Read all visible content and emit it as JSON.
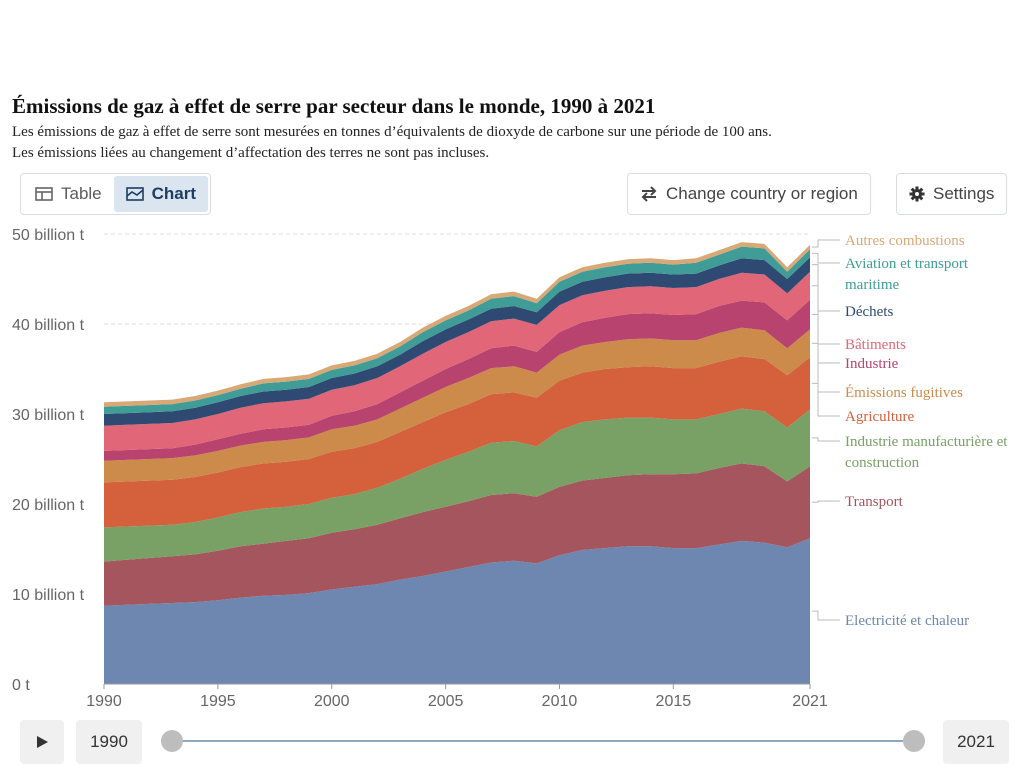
{
  "header": {
    "title": "Émissions de gaz à effet de serre par secteur dans le monde, 1990 à 2021",
    "subtitle_line1": "Les émissions de gaz à effet de serre sont mesurées en tonnes d’équivalents de dioxyde de carbone sur une période de 100 ans.",
    "subtitle_line2": "Les émissions liées au changement d’affectation des terres ne sont pas incluses."
  },
  "tabs": [
    {
      "label": "Table",
      "icon": "table-icon",
      "active": false
    },
    {
      "label": "Chart",
      "icon": "chart-icon",
      "active": true
    }
  ],
  "actions": {
    "change_country": "Change country or region",
    "settings": "Settings"
  },
  "timeline": {
    "start_year": "1990",
    "end_year": "2021",
    "start_fraction": 0.0,
    "end_fraction": 1.0
  },
  "colors": {
    "axis_text": "#666666",
    "grid": "#dddddd"
  },
  "chart_data": {
    "type": "area",
    "stacked": true,
    "title": "Émissions de gaz à effet de serre par secteur dans le monde, 1990 à 2021",
    "ylim": [
      0,
      50000000000
    ],
    "y_ticks": [
      {
        "value": 0,
        "label": "0 t"
      },
      {
        "value": 10000000000,
        "label": "10 billion t"
      },
      {
        "value": 20000000000,
        "label": "20 billion t"
      },
      {
        "value": 30000000000,
        "label": "30 billion t"
      },
      {
        "value": 40000000000,
        "label": "40 billion t"
      },
      {
        "value": 50000000000,
        "label": "50 billion t"
      }
    ],
    "x_ticks": [
      1990,
      1995,
      2000,
      2005,
      2010,
      2015,
      2021
    ],
    "xlim": [
      1990,
      2021
    ],
    "grid": "horizontal dashed",
    "legend": "right",
    "x": [
      1990,
      1991,
      1992,
      1993,
      1994,
      1995,
      1996,
      1997,
      1998,
      1999,
      2000,
      2001,
      2002,
      2003,
      2004,
      2005,
      2006,
      2007,
      2008,
      2009,
      2010,
      2011,
      2012,
      2013,
      2014,
      2015,
      2016,
      2017,
      2018,
      2019,
      2020,
      2021
    ],
    "series": [
      {
        "name": "Electricité et chaleur",
        "color": "#6d87b0",
        "values": [
          8.7,
          8.8,
          8.9,
          9.0,
          9.1,
          9.3,
          9.6,
          9.8,
          9.9,
          10.1,
          10.5,
          10.8,
          11.1,
          11.6,
          12.0,
          12.5,
          13.0,
          13.5,
          13.7,
          13.4,
          14.3,
          14.9,
          15.1,
          15.3,
          15.3,
          15.1,
          15.1,
          15.5,
          15.9,
          15.7,
          15.2,
          16.2
        ]
      },
      {
        "name": "Transport",
        "color": "#a4555e",
        "values": [
          4.9,
          5.0,
          5.1,
          5.2,
          5.3,
          5.5,
          5.7,
          5.8,
          6.0,
          6.1,
          6.3,
          6.4,
          6.6,
          6.8,
          7.1,
          7.2,
          7.3,
          7.5,
          7.5,
          7.4,
          7.6,
          7.7,
          7.8,
          7.9,
          8.0,
          8.2,
          8.3,
          8.5,
          8.6,
          8.5,
          7.3,
          8.0
        ]
      },
      {
        "name": "Industrie manufacturière et construction",
        "color": "#79a065",
        "values": [
          3.8,
          3.7,
          3.6,
          3.5,
          3.6,
          3.7,
          3.8,
          3.9,
          3.8,
          3.8,
          3.9,
          3.9,
          4.1,
          4.4,
          4.8,
          5.2,
          5.5,
          5.8,
          5.8,
          5.6,
          6.3,
          6.5,
          6.5,
          6.4,
          6.3,
          6.1,
          6.0,
          6.0,
          6.1,
          6.1,
          6.0,
          6.3
        ]
      },
      {
        "name": "Agriculture",
        "color": "#d4603c",
        "values": [
          5.0,
          5.0,
          5.0,
          5.0,
          5.0,
          5.0,
          5.0,
          5.0,
          5.0,
          5.0,
          5.1,
          5.1,
          5.1,
          5.2,
          5.2,
          5.3,
          5.3,
          5.4,
          5.4,
          5.4,
          5.5,
          5.5,
          5.6,
          5.6,
          5.7,
          5.7,
          5.7,
          5.8,
          5.8,
          5.8,
          5.8,
          5.8
        ]
      },
      {
        "name": "Émissions fugitives",
        "color": "#cc8a4b",
        "values": [
          2.4,
          2.4,
          2.4,
          2.4,
          2.4,
          2.4,
          2.4,
          2.4,
          2.4,
          2.4,
          2.5,
          2.5,
          2.5,
          2.6,
          2.7,
          2.8,
          2.9,
          2.9,
          2.9,
          2.8,
          2.9,
          3.0,
          3.0,
          3.1,
          3.1,
          3.1,
          3.1,
          3.2,
          3.2,
          3.2,
          3.0,
          3.1
        ]
      },
      {
        "name": "Industrie",
        "color": "#b8436e",
        "values": [
          1.1,
          1.1,
          1.1,
          1.1,
          1.2,
          1.3,
          1.3,
          1.4,
          1.4,
          1.4,
          1.5,
          1.6,
          1.7,
          1.8,
          1.9,
          2.0,
          2.1,
          2.2,
          2.3,
          2.3,
          2.5,
          2.6,
          2.7,
          2.8,
          2.8,
          2.8,
          2.9,
          3.0,
          3.0,
          3.1,
          3.1,
          3.3
        ]
      },
      {
        "name": "Bâtiments",
        "color": "#e06678",
        "values": [
          2.8,
          2.8,
          2.8,
          2.8,
          2.8,
          2.8,
          2.9,
          2.9,
          2.9,
          2.9,
          2.9,
          2.9,
          2.9,
          2.9,
          3.0,
          3.0,
          3.0,
          3.0,
          3.0,
          3.0,
          3.0,
          3.0,
          3.0,
          3.0,
          3.0,
          3.0,
          3.0,
          3.0,
          3.1,
          3.1,
          3.0,
          3.1
        ]
      },
      {
        "name": "Déchets",
        "color": "#2e4a73",
        "values": [
          1.3,
          1.3,
          1.3,
          1.3,
          1.3,
          1.3,
          1.3,
          1.3,
          1.3,
          1.3,
          1.3,
          1.3,
          1.3,
          1.3,
          1.4,
          1.4,
          1.4,
          1.4,
          1.4,
          1.4,
          1.5,
          1.5,
          1.5,
          1.5,
          1.5,
          1.5,
          1.5,
          1.5,
          1.6,
          1.6,
          1.6,
          1.6
        ]
      },
      {
        "name": "Aviation et transport maritime",
        "color": "#3f9c97",
        "values": [
          0.8,
          0.8,
          0.8,
          0.8,
          0.8,
          0.8,
          0.8,
          0.9,
          0.9,
          0.9,
          0.9,
          0.9,
          0.9,
          0.9,
          1.0,
          1.0,
          1.0,
          1.1,
          1.1,
          1.0,
          1.1,
          1.1,
          1.1,
          1.1,
          1.1,
          1.1,
          1.2,
          1.2,
          1.3,
          1.3,
          0.8,
          0.9
        ]
      },
      {
        "name": "Autres combustions",
        "color": "#d8a877",
        "values": [
          0.5,
          0.5,
          0.5,
          0.5,
          0.5,
          0.5,
          0.5,
          0.5,
          0.5,
          0.5,
          0.5,
          0.5,
          0.5,
          0.5,
          0.5,
          0.5,
          0.5,
          0.5,
          0.5,
          0.5,
          0.5,
          0.5,
          0.5,
          0.5,
          0.5,
          0.5,
          0.5,
          0.5,
          0.5,
          0.5,
          0.5,
          0.5
        ]
      }
    ],
    "values_unit": "billion t"
  }
}
